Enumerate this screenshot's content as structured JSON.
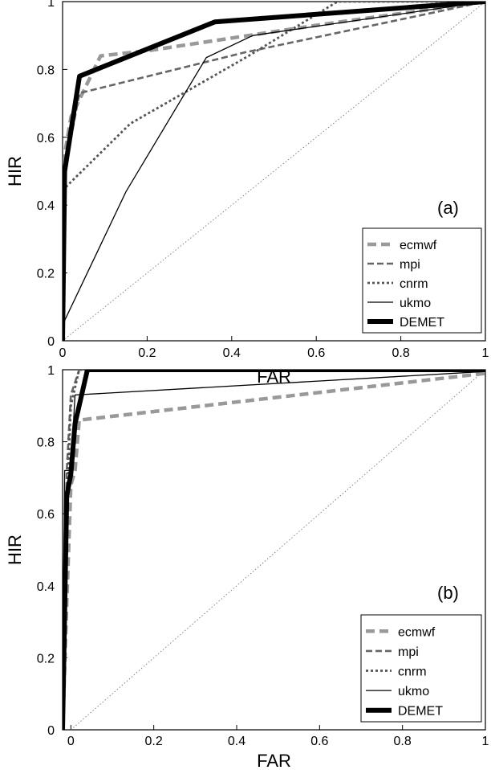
{
  "chart_data": [
    {
      "type": "line",
      "panel_label": "(a)",
      "xlabel": "FAR",
      "ylabel": "HIR",
      "xlim": [
        0,
        1
      ],
      "ylim": [
        0,
        1
      ],
      "xticks": [
        0,
        0.2,
        0.4,
        0.6,
        0.8,
        1
      ],
      "xtick_labels": [
        "0",
        "0.2",
        "0.4",
        "0.6",
        "0.8",
        "1"
      ],
      "yticks": [
        0,
        0.2,
        0.4,
        0.6,
        0.8,
        1
      ],
      "ytick_labels": [
        "0",
        "0.2",
        "0.4",
        "0.6",
        "0.8",
        "1"
      ],
      "grid": false,
      "legend_position": "bottom-right",
      "reference_line": {
        "x": [
          0,
          1
        ],
        "y": [
          0,
          1
        ]
      },
      "series": [
        {
          "name": "ecmwf",
          "color": "#999999",
          "style": "thick-dashed",
          "x": [
            0,
            0.005,
            0.02,
            0.09,
            0.2,
            0.6,
            1
          ],
          "y": [
            0,
            0.55,
            0.66,
            0.84,
            0.855,
            0.93,
            1
          ]
        },
        {
          "name": "mpi",
          "color": "#666666",
          "style": "dashed",
          "x": [
            0,
            0.005,
            0.04,
            0.43,
            1
          ],
          "y": [
            0,
            0.5,
            0.73,
            0.85,
            1
          ]
        },
        {
          "name": "cnrm",
          "color": "#555555",
          "style": "dotted",
          "x": [
            0,
            0.005,
            0.16,
            0.44,
            0.65,
            1
          ],
          "y": [
            0,
            0.45,
            0.64,
            0.84,
            1.0,
            1.0
          ]
        },
        {
          "name": "ukmo",
          "color": "#000000",
          "style": "thin",
          "x": [
            0,
            0.005,
            0.15,
            0.34,
            0.45,
            1
          ],
          "y": [
            0,
            0.06,
            0.44,
            0.835,
            0.9,
            1
          ]
        },
        {
          "name": "DEMET",
          "color": "#000000",
          "style": "thick",
          "x": [
            0,
            0.005,
            0.04,
            0.36,
            1
          ],
          "y": [
            0,
            0.5,
            0.78,
            0.94,
            1
          ]
        }
      ]
    },
    {
      "type": "line",
      "panel_label": "(b)",
      "xlabel": "FAR",
      "ylabel": "HIR",
      "xlim": [
        -0.02,
        1
      ],
      "ylim": [
        0,
        1
      ],
      "xticks": [
        0,
        0.2,
        0.4,
        0.6,
        0.8,
        1
      ],
      "xtick_labels": [
        "0",
        "0.2",
        "0.4",
        "0.6",
        "0.8",
        "1"
      ],
      "yticks": [
        0,
        0.2,
        0.4,
        0.6,
        0.8,
        1
      ],
      "ytick_labels": [
        "0",
        "0.2",
        "0.4",
        "0.6",
        "0.8",
        "1"
      ],
      "grid": false,
      "legend_position": "bottom-right",
      "reference_line": {
        "x": [
          0,
          1
        ],
        "y": [
          0,
          1
        ]
      },
      "series": [
        {
          "name": "ecmwf",
          "color": "#999999",
          "style": "thick-dashed",
          "x": [
            -0.02,
            -0.01,
            0.0,
            0.01,
            0.02,
            1
          ],
          "y": [
            0,
            0.35,
            0.68,
            0.72,
            0.86,
            0.99
          ]
        },
        {
          "name": "mpi",
          "color": "#666666",
          "style": "dashed",
          "x": [
            -0.02,
            -0.01,
            0.0,
            0.02,
            1
          ],
          "y": [
            0,
            0.72,
            0.93,
            1.0,
            1.0
          ]
        },
        {
          "name": "cnrm",
          "color": "#555555",
          "style": "dotted",
          "x": [
            -0.02,
            -0.01,
            0.0,
            0.02,
            1
          ],
          "y": [
            0,
            0.62,
            0.9,
            1.0,
            1.0
          ]
        },
        {
          "name": "ukmo",
          "color": "#000000",
          "style": "thin",
          "x": [
            -0.02,
            -0.015,
            0.0,
            0.01,
            1
          ],
          "y": [
            0,
            0.72,
            0.72,
            0.93,
            0.995
          ]
        },
        {
          "name": "DEMET",
          "color": "#000000",
          "style": "thick",
          "x": [
            -0.02,
            -0.01,
            0.0,
            0.01,
            0.04,
            1
          ],
          "y": [
            0,
            0.65,
            0.71,
            0.85,
            1.0,
            1.0
          ]
        }
      ]
    }
  ]
}
